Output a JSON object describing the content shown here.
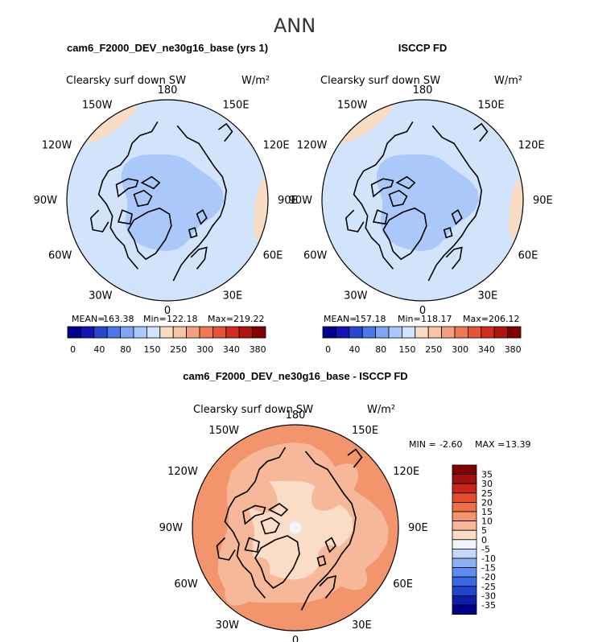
{
  "page_title": "ANN",
  "variable": "Clearsky surf down SW",
  "units": "W/m²",
  "lon_labels": [
    "180",
    "150E",
    "120E",
    "90E",
    "60E",
    "30E",
    "0",
    "30W",
    "60W",
    "90W",
    "120W",
    "150W"
  ],
  "colors": {
    "abs_scale": [
      "#00008c",
      "#1414b4",
      "#2846d2",
      "#4a78e8",
      "#7ea6f4",
      "#aac8fa",
      "#d2e4fc",
      "#f9dcc4",
      "#f9c4a6",
      "#f4a07e",
      "#ee7a52",
      "#e65532",
      "#d22d1c",
      "#b0140e",
      "#820000"
    ],
    "diff_scale": [
      "#00008c",
      "#0a1ea8",
      "#1e46cc",
      "#3a6ae2",
      "#5e8cf0",
      "#8cb0f6",
      "#c4d9fa",
      "#f0f4fc",
      "#fbdcc6",
      "#f6b898",
      "#f2946c",
      "#ee6e46",
      "#e44c2a",
      "#c8261a",
      "#a0100c",
      "#800000"
    ]
  },
  "chart_data": [
    {
      "type": "heatmap",
      "projection": "north-polar-stereographic",
      "title": "cam6_F2000_DEV_ne30g16_base (yrs 1)",
      "variable": "Clearsky surf down SW",
      "units": "W/m²",
      "stats": {
        "mean_label": "MEAN=",
        "mean": "163.38",
        "min_label": "Min=",
        "min": "122.18",
        "max_label": "Max=",
        "max": "219.22"
      },
      "colorbar_ticks": [
        "0",
        "40",
        "80",
        "150",
        "250",
        "300",
        "340",
        "380"
      ],
      "field": {
        "pole": 125,
        "lat70": 135,
        "lat60": 155,
        "edge": 190
      }
    },
    {
      "type": "heatmap",
      "projection": "north-polar-stereographic",
      "title": "ISCCP FD",
      "variable": "Clearsky surf down SW",
      "units": "W/m²",
      "stats": {
        "mean_label": "MEAN=",
        "mean": "157.18",
        "min_label": "Min=",
        "min": "118.17",
        "max_label": "Max=",
        "max": "206.12"
      },
      "colorbar_ticks": [
        "0",
        "40",
        "80",
        "150",
        "250",
        "300",
        "340",
        "380"
      ],
      "field": {
        "pole": 118,
        "lat70": 132,
        "lat60": 150,
        "edge": 185
      }
    },
    {
      "type": "heatmap",
      "projection": "north-polar-stereographic",
      "title": "cam6_F2000_DEV_ne30g16_base - ISCCP FD",
      "variable": "Clearsky surf down SW",
      "units": "W/m²",
      "stats": {
        "min_label": "MIN =",
        "min": "-2.60",
        "max_label": "MAX =",
        "max": "13.39"
      },
      "colorbar_levels": [
        "35",
        "30",
        "25",
        "20",
        "15",
        "10",
        "5",
        "0",
        "-5",
        "-10",
        "-15",
        "-20",
        "-25",
        "-30",
        "-35"
      ],
      "field": {
        "pole": 1,
        "lat70": 4,
        "lat60": 7,
        "edge": 10
      }
    }
  ]
}
